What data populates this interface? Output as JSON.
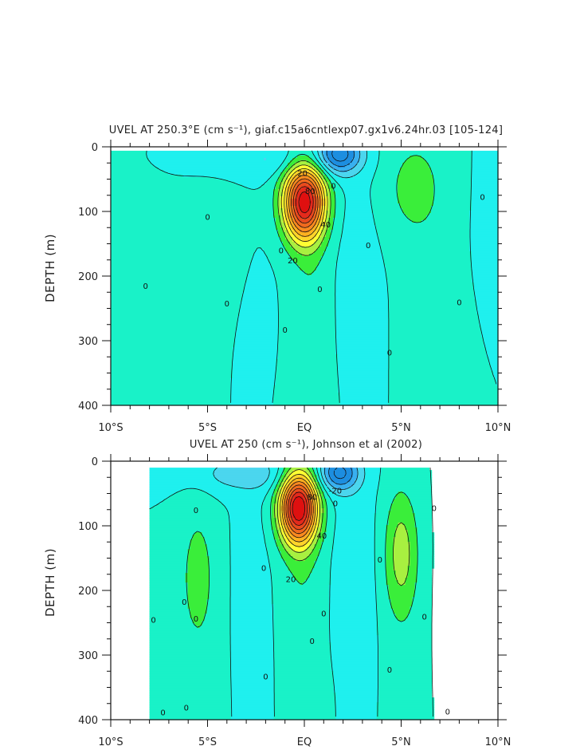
{
  "chart_data": [
    {
      "type": "heatmap",
      "subtype": "filled-contour",
      "title": "UVEL AT 250.3°E (cm s⁻¹), giaf.c15a6cntlexp07.gx1v6.24hr.03 [105-124]",
      "xlabel": "",
      "ylabel": "DEPTH (m)",
      "xlim": [
        -10,
        10
      ],
      "ylim": [
        0,
        400
      ],
      "y_inverted": true,
      "x_tick_values": [
        -10,
        -5,
        0,
        5,
        10
      ],
      "x_tick_labels": [
        "10°S",
        "5°S",
        "EQ",
        "5°N",
        "10°N"
      ],
      "y_tick_values": [
        0,
        100,
        200,
        300,
        400
      ],
      "y_tick_labels": [
        "0",
        "100",
        "200",
        "300",
        "400"
      ],
      "contour_interval": 10,
      "features": [
        {
          "kind": "core",
          "sign": "eastward",
          "lat": 0,
          "depth": 85,
          "max": 100
        },
        {
          "kind": "core",
          "sign": "westward",
          "lat": 1.8,
          "depth": 15,
          "min": -40
        },
        {
          "kind": "core",
          "sign": "eastward",
          "lat": 5.5,
          "depth": 60,
          "max": 10
        }
      ],
      "contour_labels": [
        {
          "text": "20",
          "lat": -0.1,
          "depth": 40
        },
        {
          "text": "80",
          "lat": 0.3,
          "depth": 68
        },
        {
          "text": "40",
          "lat": 1.1,
          "depth": 120
        },
        {
          "text": "20",
          "lat": -0.6,
          "depth": 175
        },
        {
          "text": "0",
          "lat": -8.2,
          "depth": 215
        },
        {
          "text": "0",
          "lat": -5.0,
          "depth": 108
        },
        {
          "text": "0",
          "lat": -4.0,
          "depth": 242
        },
        {
          "text": "0",
          "lat": -1.2,
          "depth": 160
        },
        {
          "text": "0",
          "lat": -1.0,
          "depth": 283
        },
        {
          "text": "0",
          "lat": 0.8,
          "depth": 220
        },
        {
          "text": "0",
          "lat": 1.5,
          "depth": 60
        },
        {
          "text": "0",
          "lat": 3.3,
          "depth": 152
        },
        {
          "text": "0",
          "lat": 4.4,
          "depth": 318
        },
        {
          "text": "0",
          "lat": 8.0,
          "depth": 240
        },
        {
          "text": "0",
          "lat": 9.2,
          "depth": 77
        }
      ]
    },
    {
      "type": "heatmap",
      "subtype": "filled-contour",
      "title": "UVEL AT 250 (cm s⁻¹), Johnson et al (2002)",
      "xlabel": "",
      "ylabel": "DEPTH (m)",
      "xlim": [
        -10,
        10
      ],
      "ylim": [
        0,
        400
      ],
      "y_inverted": true,
      "data_extent": {
        "lat": [
          -8,
          8.3
        ],
        "depth": [
          10,
          400
        ]
      },
      "x_tick_values": [
        -10,
        -5,
        0,
        5,
        10
      ],
      "x_tick_labels": [
        "10°S",
        "5°S",
        "EQ",
        "5°N",
        "10°N"
      ],
      "y_tick_values": [
        0,
        100,
        200,
        300,
        400
      ],
      "y_tick_labels": [
        "0",
        "100",
        "200",
        "300",
        "400"
      ],
      "contour_interval": 10,
      "features": [
        {
          "kind": "core",
          "sign": "eastward",
          "lat": -0.3,
          "depth": 72,
          "max": 100
        },
        {
          "kind": "core",
          "sign": "westward",
          "lat": 1.8,
          "depth": 20,
          "min": -40
        },
        {
          "kind": "core",
          "sign": "eastward",
          "lat": 5.0,
          "depth": 140,
          "max": 20
        },
        {
          "kind": "core",
          "sign": "eastward",
          "lat": -5.5,
          "depth": 170,
          "max": 10
        }
      ],
      "contour_labels": [
        {
          "text": "80",
          "lat": 0.4,
          "depth": 55
        },
        {
          "text": "-20",
          "lat": 1.6,
          "depth": 45
        },
        {
          "text": "40",
          "lat": 0.9,
          "depth": 115
        },
        {
          "text": "20",
          "lat": -0.7,
          "depth": 182
        },
        {
          "text": "0",
          "lat": -2.1,
          "depth": 165
        },
        {
          "text": "0",
          "lat": -5.6,
          "depth": 75
        },
        {
          "text": "0",
          "lat": -6.2,
          "depth": 217
        },
        {
          "text": "0",
          "lat": -7.8,
          "depth": 245
        },
        {
          "text": "0",
          "lat": -5.6,
          "depth": 243
        },
        {
          "text": "0",
          "lat": -7.3,
          "depth": 388
        },
        {
          "text": "0",
          "lat": -6.1,
          "depth": 381
        },
        {
          "text": "0",
          "lat": -2.0,
          "depth": 333
        },
        {
          "text": "0",
          "lat": 1.0,
          "depth": 235
        },
        {
          "text": "0",
          "lat": 0.4,
          "depth": 278
        },
        {
          "text": "0",
          "lat": 1.6,
          "depth": 65
        },
        {
          "text": "0",
          "lat": 3.9,
          "depth": 152
        },
        {
          "text": "0",
          "lat": 4.4,
          "depth": 322
        },
        {
          "text": "0",
          "lat": 6.2,
          "depth": 240
        },
        {
          "text": "0",
          "lat": 6.7,
          "depth": 72
        },
        {
          "text": "0",
          "lat": 7.4,
          "depth": 387
        }
      ]
    }
  ],
  "colors": {
    "neg4": "#1d8ee0",
    "neg3": "#38b0f0",
    "neg2": "#4bd6ee",
    "neg1": "#1ff0ee",
    "zero": "#19f2c8",
    "pos1": "#3aee3a",
    "pos2": "#a8f040",
    "pos3": "#ffff33",
    "pos4": "#ffd42a",
    "pos5": "#ffb020",
    "pos6": "#f98a20",
    "pos7": "#f06a1e",
    "pos8": "#e84a1e",
    "pos9": "#e42a1c",
    "pos10": "#df1010"
  }
}
